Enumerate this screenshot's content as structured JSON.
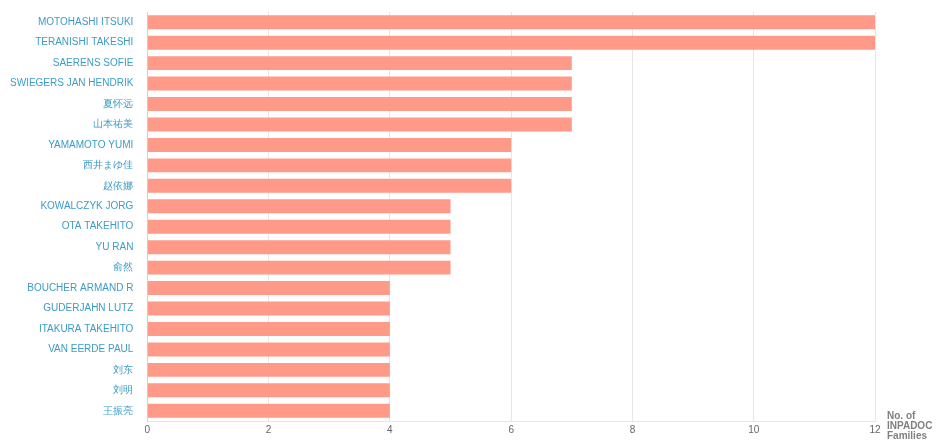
{
  "chart_data": {
    "type": "bar",
    "orientation": "horizontal",
    "categories": [
      "MOTOHASHI ITSUKI",
      "TERANISHI TAKESHI",
      "SAERENS SOFIE",
      "SWIEGERS JAN HENDRIK",
      "夏怀远",
      "山本祐美",
      "YAMAMOTO YUMI",
      "西井まゆ佳",
      "赵依娜",
      "KOWALCZYK JORG",
      "OTA TAKEHITO",
      "YU RAN",
      "俞然",
      "BOUCHER ARMAND R",
      "GUDERJAHN LUTZ",
      "ITAKURA TAKEHITO",
      "VAN EERDE PAUL",
      "刘东",
      "刘明",
      "王振亮"
    ],
    "values": [
      12,
      12,
      7,
      7,
      7,
      7,
      6,
      6,
      6,
      5,
      5,
      5,
      5,
      4,
      4,
      4,
      4,
      4,
      4,
      4
    ],
    "color": "#ff9a88",
    "x_label": "No. of INPADOC Families",
    "xlim": [
      0,
      12
    ],
    "xticks": [
      0,
      2,
      4,
      6,
      8,
      10,
      12
    ],
    "grid": true
  }
}
